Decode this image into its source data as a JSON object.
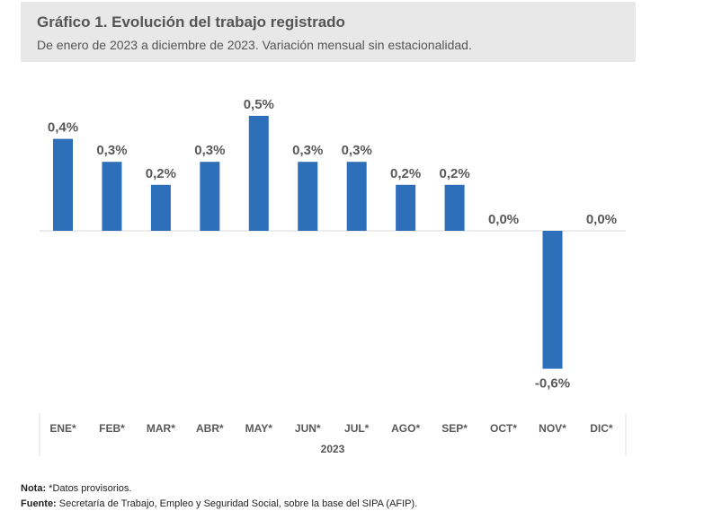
{
  "chart_data": {
    "type": "bar",
    "title": "Gráfico 1. Evolución del trabajo registrado",
    "subtitle": "De enero de 2023 a diciembre de 2023. Variación mensual sin estacionalidad.",
    "categories": [
      "ENE*",
      "FEB*",
      "MAR*",
      "ABR*",
      "MAY*",
      "JUN*",
      "JUL*",
      "AGO*",
      "SEP*",
      "OCT*",
      "NOV*",
      "DIC*"
    ],
    "values": [
      0.4,
      0.3,
      0.2,
      0.3,
      0.5,
      0.3,
      0.3,
      0.2,
      0.2,
      0.0,
      -0.6,
      0.0
    ],
    "data_labels": [
      "0,4%",
      "0,3%",
      "0,2%",
      "0,3%",
      "0,5%",
      "0,3%",
      "0,3%",
      "0,2%",
      "0,2%",
      "0,0%",
      "-0,6%",
      "0,0%"
    ],
    "xlabel": "2023",
    "ylabel": "",
    "ylim": [
      -0.6,
      0.5
    ],
    "grid": false,
    "bar_color": "#2e6fba"
  },
  "notes": {
    "nota_label": "Nota:",
    "nota_text": " *Datos provisorios.",
    "fuente_label": "Fuente:",
    "fuente_text": " Secretaría de Trabajo, Empleo y Seguridad Social, sobre la base del SIPA (AFIP)."
  }
}
